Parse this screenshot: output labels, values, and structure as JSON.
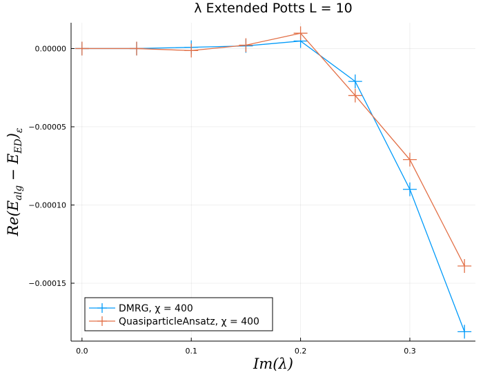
{
  "chart_data": {
    "type": "line",
    "title": "λ Extended Potts L = 10",
    "xlabel": "Im(λ)",
    "ylabel_parts": {
      "pre": "Re(E",
      "sub1": "alg",
      "mid": " − E",
      "sub2": "ED",
      "post": ")",
      "sub3": "ε"
    },
    "xlim": [
      -0.01,
      0.36
    ],
    "ylim": [
      -0.000187,
      1.65e-05
    ],
    "xticks": [
      0.0,
      0.1,
      0.2,
      0.3
    ],
    "xtick_labels": [
      "0.0",
      "0.1",
      "0.2",
      "0.3"
    ],
    "yticks": [
      0.0,
      -5e-05,
      -0.0001,
      -0.00015
    ],
    "ytick_labels": [
      "0.00000",
      "−0.00005",
      "−0.00010",
      "−0.00015"
    ],
    "grid": true,
    "legend_position": "bottom-left",
    "x": [
      0.0,
      0.05,
      0.1,
      0.15,
      0.2,
      0.25,
      0.3,
      0.35
    ],
    "series": [
      {
        "name": "DMRG, χ = 400",
        "color": "#009af9",
        "marker": "cross",
        "values": [
          0.0,
          0.0,
          8e-07,
          1.7e-06,
          4.8e-06,
          -2.1e-05,
          -9e-05,
          -0.000181
        ]
      },
      {
        "name": "QuasiparticleAnsatz, χ = 400",
        "color": "#e26f46",
        "marker": "cross",
        "values": [
          0.0,
          0.0,
          -1.3e-06,
          2.2e-06,
          9.8e-06,
          -3e-05,
          -7.1e-05,
          -0.000139
        ]
      }
    ]
  }
}
